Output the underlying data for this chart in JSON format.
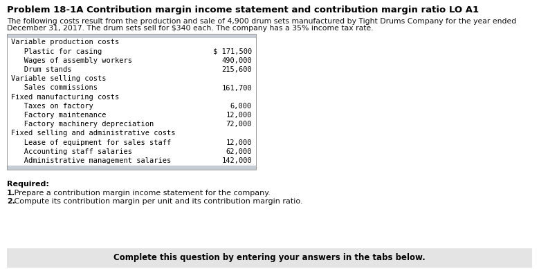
{
  "title": "Problem 18-1A Contribution margin income statement and contribution margin ratio LO A1",
  "intro_line1": "The following costs result from the production and sale of 4,900 drum sets manufactured by Tight Drums Company for the year ended",
  "intro_line2": "December 31, 2017. The drum sets sell for $340 each. The company has a 35% income tax rate.",
  "table_rows": [
    {
      "label": "Variable production costs",
      "value": "",
      "indent": 0
    },
    {
      "label": "   Plastic for casing",
      "value": "$ 171,500",
      "indent": 0
    },
    {
      "label": "   Wages of assembly workers",
      "value": "490,000",
      "indent": 0
    },
    {
      "label": "   Drum stands",
      "value": "215,600",
      "indent": 0
    },
    {
      "label": "Variable selling costs",
      "value": "",
      "indent": 0
    },
    {
      "label": "   Sales commissions",
      "value": "161,700",
      "indent": 0
    },
    {
      "label": "Fixed manufacturing costs",
      "value": "",
      "indent": 0
    },
    {
      "label": "   Taxes on factory",
      "value": "6,000",
      "indent": 0
    },
    {
      "label": "   Factory maintenance",
      "value": "12,000",
      "indent": 0
    },
    {
      "label": "   Factory machinery depreciation",
      "value": "72,000",
      "indent": 0
    },
    {
      "label": "Fixed selling and administrative costs",
      "value": "",
      "indent": 0
    },
    {
      "label": "   Lease of equipment for sales staff",
      "value": "12,000",
      "indent": 0
    },
    {
      "label": "   Accounting staff salaries",
      "value": "62,000",
      "indent": 0
    },
    {
      "label": "   Administrative management salaries",
      "value": "142,000",
      "indent": 0
    }
  ],
  "required_label": "Required:",
  "required_item1_bold": "1.",
  "required_item1_rest": " Prepare a contribution margin income statement for the company.",
  "required_item2_bold": "2.",
  "required_item2_rest": " Compute its contribution margin per unit and its contribution margin ratio.",
  "footer_text": "Complete this question by entering your answers in the tabs below.",
  "table_header_color": "#c5ccd4",
  "table_footer_color": "#c5ccd4",
  "table_bg_color": "#ffffff",
  "table_border_color": "#999999",
  "footer_bg_color": "#e4e4e4",
  "title_fontsize": 9.5,
  "body_fontsize": 7.8,
  "mono_fontsize": 7.5,
  "required_fontsize": 8.0,
  "footer_fontsize": 8.5
}
